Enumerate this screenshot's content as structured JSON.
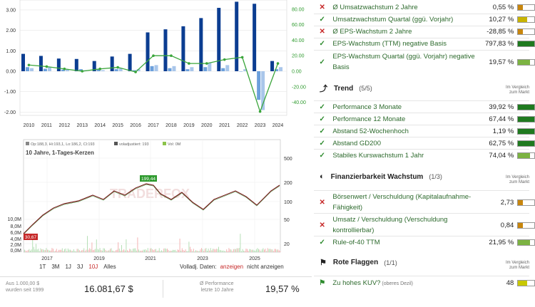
{
  "growth_chart": {
    "years": [
      "2010",
      "2011",
      "2012",
      "2013",
      "2014",
      "2015",
      "2016",
      "2017",
      "2018",
      "2019",
      "2020",
      "2021",
      "2022",
      "2023",
      "2024"
    ],
    "y_left_ticks": [
      "3.00",
      "2.00",
      "1.00",
      "0.00",
      "-1.00",
      "-2.00"
    ],
    "y_right_ticks": [
      "80.00",
      "60.00",
      "40.00",
      "20.00",
      "0.00",
      "-20.00",
      "-40.00"
    ],
    "colors": {
      "bar_dark": "#0b3d91",
      "bar_light": "#6ca0dc",
      "line": "#3aa53a"
    }
  },
  "price_chart": {
    "legend": [
      "Op:188,3, Hi:193,1, Lo:186,2, Cl:193",
      "voladjustiert: 193",
      "Vol: 0M"
    ],
    "title": "10 Jahre, 1-Tages-Kerzen",
    "price_ticks": [
      "500",
      "200",
      "100",
      "50",
      "20"
    ],
    "volume_ticks": [
      "10,0M",
      "8,0M",
      "6,0M",
      "4,0M",
      "2,0M",
      "0,0M"
    ],
    "x_labels": [
      "2017",
      "2019",
      "2021",
      "2023",
      "2025"
    ],
    "high_label": "199,44",
    "low_label": "30,67",
    "watermark": "TRADERFOX",
    "ranges": [
      "1T",
      "3M",
      "1J",
      "3J",
      "10J",
      "Alles"
    ],
    "active_range": "10J",
    "volladj_label": "Volladj. Daten:",
    "volladj_on": "anzeigen",
    "volladj_off": "nicht anzeigen"
  },
  "bottom": {
    "invest_line1": "Aus 1.000,00 $",
    "invest_line2": "wurden seit 1999",
    "invest_value": "16.081,67 $",
    "perf_line1": "Ø Performance",
    "perf_line2": "letzte 10 Jahre",
    "perf_value": "19,57 %"
  },
  "kpi_top": [
    {
      "status": "fail",
      "label": "Ø Umsatzwachstum 2 Jahre",
      "value": "0,55 %",
      "bar_color": "#c8860d",
      "bar_fill": 0.3
    },
    {
      "status": "pass",
      "label": "Umsatzwachstum Quartal (ggü. Vorjahr)",
      "value": "10,27 %",
      "bar_color": "#c8b400",
      "bar_fill": 0.55
    },
    {
      "status": "fail",
      "label": "Ø EPS-Wachstum 2 Jahre",
      "value": "-28,85 %",
      "bar_color": "#c8860d",
      "bar_fill": 0.3
    },
    {
      "status": "pass",
      "label": "EPS-Wachstum (TTM) negative Basis",
      "value": "797,83 %",
      "bar_color": "#1f7a1f",
      "bar_fill": 1.0
    },
    {
      "status": "pass",
      "label": "EPS-Wachstum Quartal (ggü. Vorjahr) negative Basis",
      "value": "19,57 %",
      "bar_color": "#7cb342",
      "bar_fill": 0.75
    }
  ],
  "trend": {
    "title": "Trend",
    "count": "(5/5)",
    "compare": [
      "Im Vergleich",
      "zum Markt"
    ],
    "items": [
      {
        "status": "pass",
        "label": "Performance 3 Monate",
        "value": "39,92 %",
        "bar_color": "#1f7a1f",
        "bar_fill": 1.0
      },
      {
        "status": "pass",
        "label": "Performance 12 Monate",
        "value": "67,44 %",
        "bar_color": "#1f7a1f",
        "bar_fill": 1.0
      },
      {
        "status": "pass",
        "label": "Abstand 52-Wochenhoch",
        "value": "1,19 %",
        "bar_color": "#1f7a1f",
        "bar_fill": 1.0
      },
      {
        "status": "pass",
        "label": "Abstand GD200",
        "value": "62,75 %",
        "bar_color": "#1f7a1f",
        "bar_fill": 1.0
      },
      {
        "status": "pass",
        "label": "Stabiles Kurswachstum 1 Jahr",
        "value": "74,04 %",
        "bar_color": "#7cb342",
        "bar_fill": 0.75
      }
    ]
  },
  "finanz": {
    "title": "Finanzierbarkeit Wachstum",
    "count": "(1/3)",
    "compare": [
      "Im Vergleich",
      "zum Markt"
    ],
    "items": [
      {
        "status": "fail",
        "label": "Börsenwert / Verschuldung (Kapitalaufnahme-Fähigkeit)",
        "value": "2,73",
        "bar_color": "#c8860d",
        "bar_fill": 0.3
      },
      {
        "status": "fail",
        "label": "Umsatz / Verschuldung (Verschuldung kontrollierbar)",
        "value": "0,84",
        "bar_color": "#c8860d",
        "bar_fill": 0.3
      },
      {
        "status": "pass",
        "label": "Rule-of-40 TTM",
        "value": "21,95 %",
        "bar_color": "#7cb342",
        "bar_fill": 0.75
      }
    ]
  },
  "flags": {
    "title": "Rote Flaggen",
    "count": "(1/1)",
    "compare": [
      "Im Vergleich",
      "zum Markt"
    ],
    "items": [
      {
        "status": "flag",
        "label": "Zu hohes KUV?",
        "sub": "(oberes Dezil)",
        "value": "48",
        "bar_color": "#c8c800",
        "bar_fill": 0.55
      }
    ]
  }
}
